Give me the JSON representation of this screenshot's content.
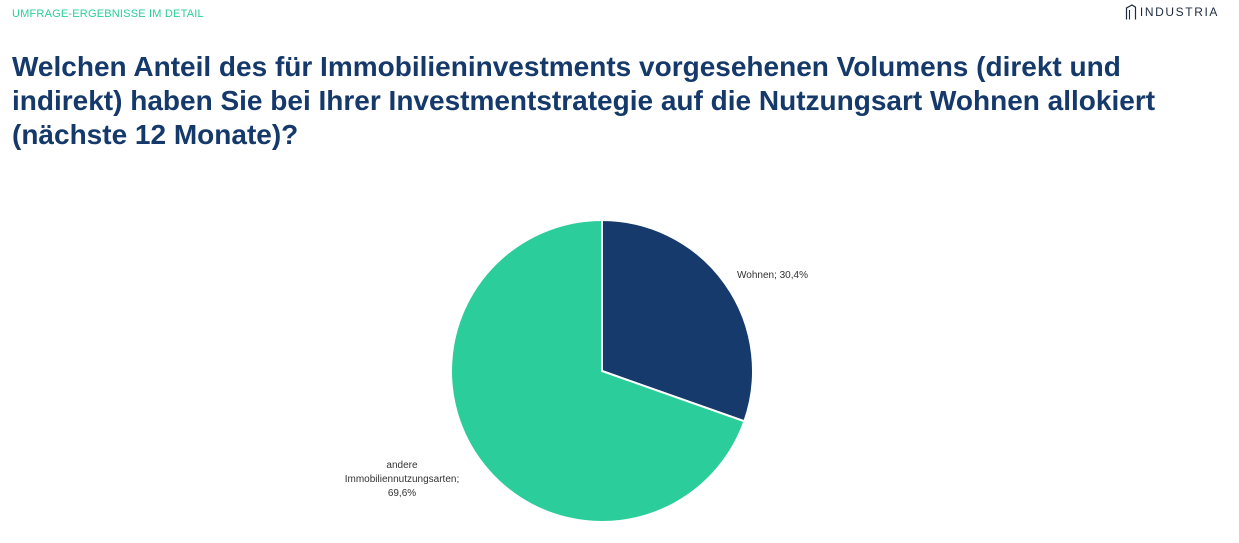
{
  "header": {
    "kicker": "UMFRAGE-ERGEBNISSE IM DETAIL",
    "brand": "INDUSTRIA",
    "brand_icon": "building-outline-icon"
  },
  "question": "Welchen Anteil des für Immobilieninvestments vorgesehenen Volumens (direkt und indirekt) haben Sie bei Ihrer Investmentstrategie auf die Nutzungsart Wohnen allokiert (nächste 12 Monate)?",
  "chart_data": {
    "type": "pie",
    "title": "",
    "slices": [
      {
        "name": "Wohnen",
        "value": 30.4,
        "label_lines": [
          "Wohnen; 30,4%"
        ],
        "color": "#153a6b"
      },
      {
        "name": "andere Immobiliennutzungsarten",
        "value": 69.6,
        "label_lines": [
          "andere",
          "Immobiliennutzungsarten;",
          "69,6%"
        ],
        "color": "#2bce9a"
      }
    ],
    "start_angle": "12 o'clock",
    "direction": "clockwise",
    "legend": "none"
  }
}
